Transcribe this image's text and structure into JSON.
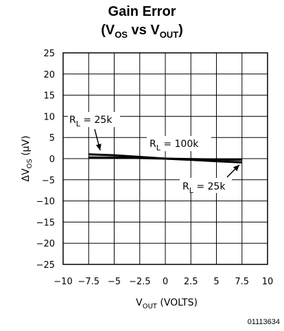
{
  "title_line1": "Gain Error",
  "title_line2_parts": {
    "open": "(V",
    "sub1": "OS",
    "mid": " vs V",
    "sub2": "OUT",
    "close": ")"
  },
  "figure_code": "01113634",
  "chart_data": {
    "type": "line",
    "title": "Gain Error (VOS vs VOUT)",
    "xlabel": "VOUT (VOLTS)",
    "ylabel": "ΔVOS (μV)",
    "xlim": [
      -10,
      10
    ],
    "ylim": [
      -25,
      25
    ],
    "xticks": [
      -10,
      -7.5,
      -5,
      -2.5,
      0,
      2.5,
      5,
      7.5,
      10
    ],
    "yticks": [
      25,
      20,
      15,
      10,
      5,
      0,
      -5,
      -10,
      -15,
      -20,
      -25
    ],
    "xtick_labels": [
      "−10",
      "−7.5",
      "−5",
      "−2.5",
      "0",
      "2.5",
      "5",
      "7.5",
      "10"
    ],
    "ytick_labels": [
      "25",
      "20",
      "15",
      "10",
      "5",
      "0",
      "−5",
      "−10",
      "−15",
      "−20",
      "−25"
    ],
    "grid": true,
    "series": [
      {
        "name": "RL = 25k",
        "x": [
          -7.5,
          -5,
          -2.5,
          0,
          2.5,
          5,
          7.5
        ],
        "y": [
          1.0,
          0.8,
          0.4,
          0.0,
          -0.3,
          -0.6,
          -0.9
        ],
        "color": "#000000"
      },
      {
        "name": "RL = 100k",
        "x": [
          -7.5,
          -5,
          -2.5,
          0,
          2.5,
          5,
          7.5
        ],
        "y": [
          0.3,
          0.25,
          0.15,
          0.0,
          -0.1,
          -0.2,
          -0.3
        ],
        "color": "#000000"
      }
    ],
    "annotations": [
      {
        "R": "R",
        "sub": "L",
        "text": " = 25k"
      },
      {
        "R": "R",
        "sub": "L",
        "text": " = 100k"
      },
      {
        "R": "R",
        "sub": "L",
        "text": " = 25k"
      }
    ]
  }
}
